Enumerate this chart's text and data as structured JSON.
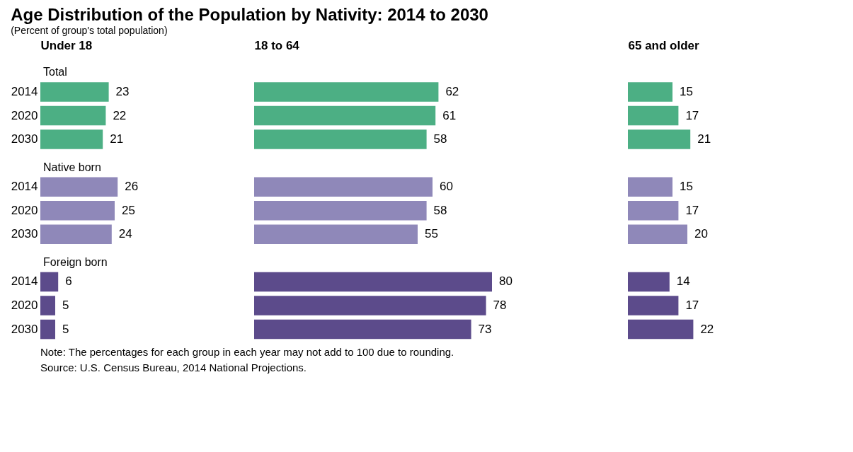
{
  "chart_data": [
    {
      "type": "bar",
      "orientation": "horizontal",
      "title": "Age Distribution of the Population by Nativity: 2014 to 2030",
      "subtitle": "(Percent of group's total population)",
      "xlabel": "Under 18",
      "categories": [
        "2014",
        "2020",
        "2030",
        "2014",
        "2020",
        "2030",
        "2014",
        "2020",
        "2030"
      ],
      "series": [
        {
          "name": "Total",
          "color": "#4caf84",
          "values": [
            23,
            22,
            21,
            null,
            null,
            null,
            null,
            null,
            null
          ]
        },
        {
          "name": "Native born",
          "color": "#8f88b9",
          "values": [
            null,
            null,
            null,
            26,
            25,
            24,
            null,
            null,
            null
          ]
        },
        {
          "name": "Foreign born",
          "color": "#5c4b8b",
          "values": [
            null,
            null,
            null,
            null,
            null,
            null,
            6,
            5,
            5
          ]
        }
      ],
      "data_labels": true,
      "grid": false,
      "tick_labels": "y",
      "annotations": [
        "Note: The percentages for each group in each year may not add to 100 due to rounding.",
        "Source: U.S. Census Bureau, 2014 National Projections."
      ]
    },
    {
      "type": "bar",
      "orientation": "horizontal",
      "xlabel": "18 to 64",
      "categories": [
        "2014",
        "2020",
        "2030",
        "2014",
        "2020",
        "2030",
        "2014",
        "2020",
        "2030"
      ],
      "series": [
        {
          "color": "#4caf84",
          "values": [
            62,
            61,
            58,
            null,
            null,
            null,
            null,
            null,
            null
          ]
        },
        {
          "color": "#8f88b9",
          "values": [
            null,
            null,
            null,
            60,
            58,
            55,
            null,
            null,
            null
          ]
        },
        {
          "color": "#5c4b8b",
          "values": [
            null,
            null,
            null,
            null,
            null,
            null,
            80,
            78,
            73
          ]
        }
      ],
      "data_labels": true,
      "grid": false,
      "tick_labels": false
    },
    {
      "type": "bar",
      "orientation": "horizontal",
      "xlabel": "65 and older",
      "categories": [
        "2014",
        "2020",
        "2030",
        "2014",
        "2020",
        "2030",
        "2014",
        "2020",
        "2030"
      ],
      "series": [
        {
          "color": "#4caf84",
          "values": [
            15,
            17,
            21,
            null,
            null,
            null,
            null,
            null,
            null
          ]
        },
        {
          "color": "#8f88b9",
          "values": [
            null,
            null,
            null,
            15,
            17,
            20,
            null,
            null,
            null
          ]
        },
        {
          "color": "#5c4b8b",
          "values": [
            null,
            null,
            null,
            null,
            null,
            null,
            14,
            17,
            22
          ]
        }
      ],
      "data_labels": true,
      "grid": false,
      "tick_labels": false
    }
  ]
}
